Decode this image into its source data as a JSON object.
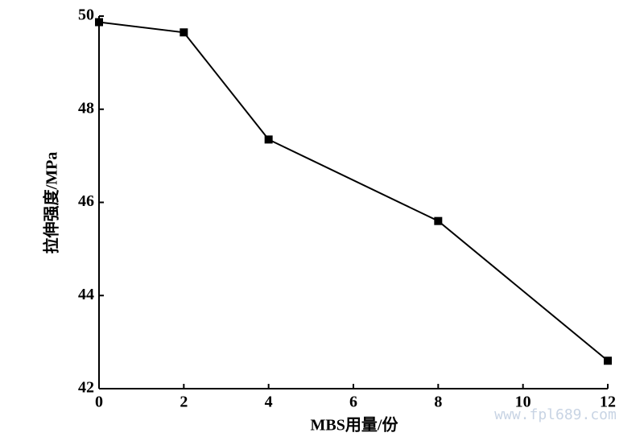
{
  "chart_data": {
    "type": "line",
    "xlabel": "MBS用量/份",
    "ylabel": "拉伸强度/MPa",
    "x": [
      0,
      2,
      4,
      8,
      12
    ],
    "series": [
      {
        "color": "#000000",
        "values": [
          49.87,
          49.65,
          47.35,
          45.6,
          42.6
        ]
      }
    ],
    "xlim": [
      0,
      12
    ],
    "xticks": [
      0,
      2,
      4,
      6,
      8,
      10,
      12
    ],
    "ylim": [
      42,
      50
    ],
    "yticks": [
      42,
      44,
      46,
      48,
      50
    ],
    "grid": false,
    "watermark": "www.fpl689.com"
  }
}
